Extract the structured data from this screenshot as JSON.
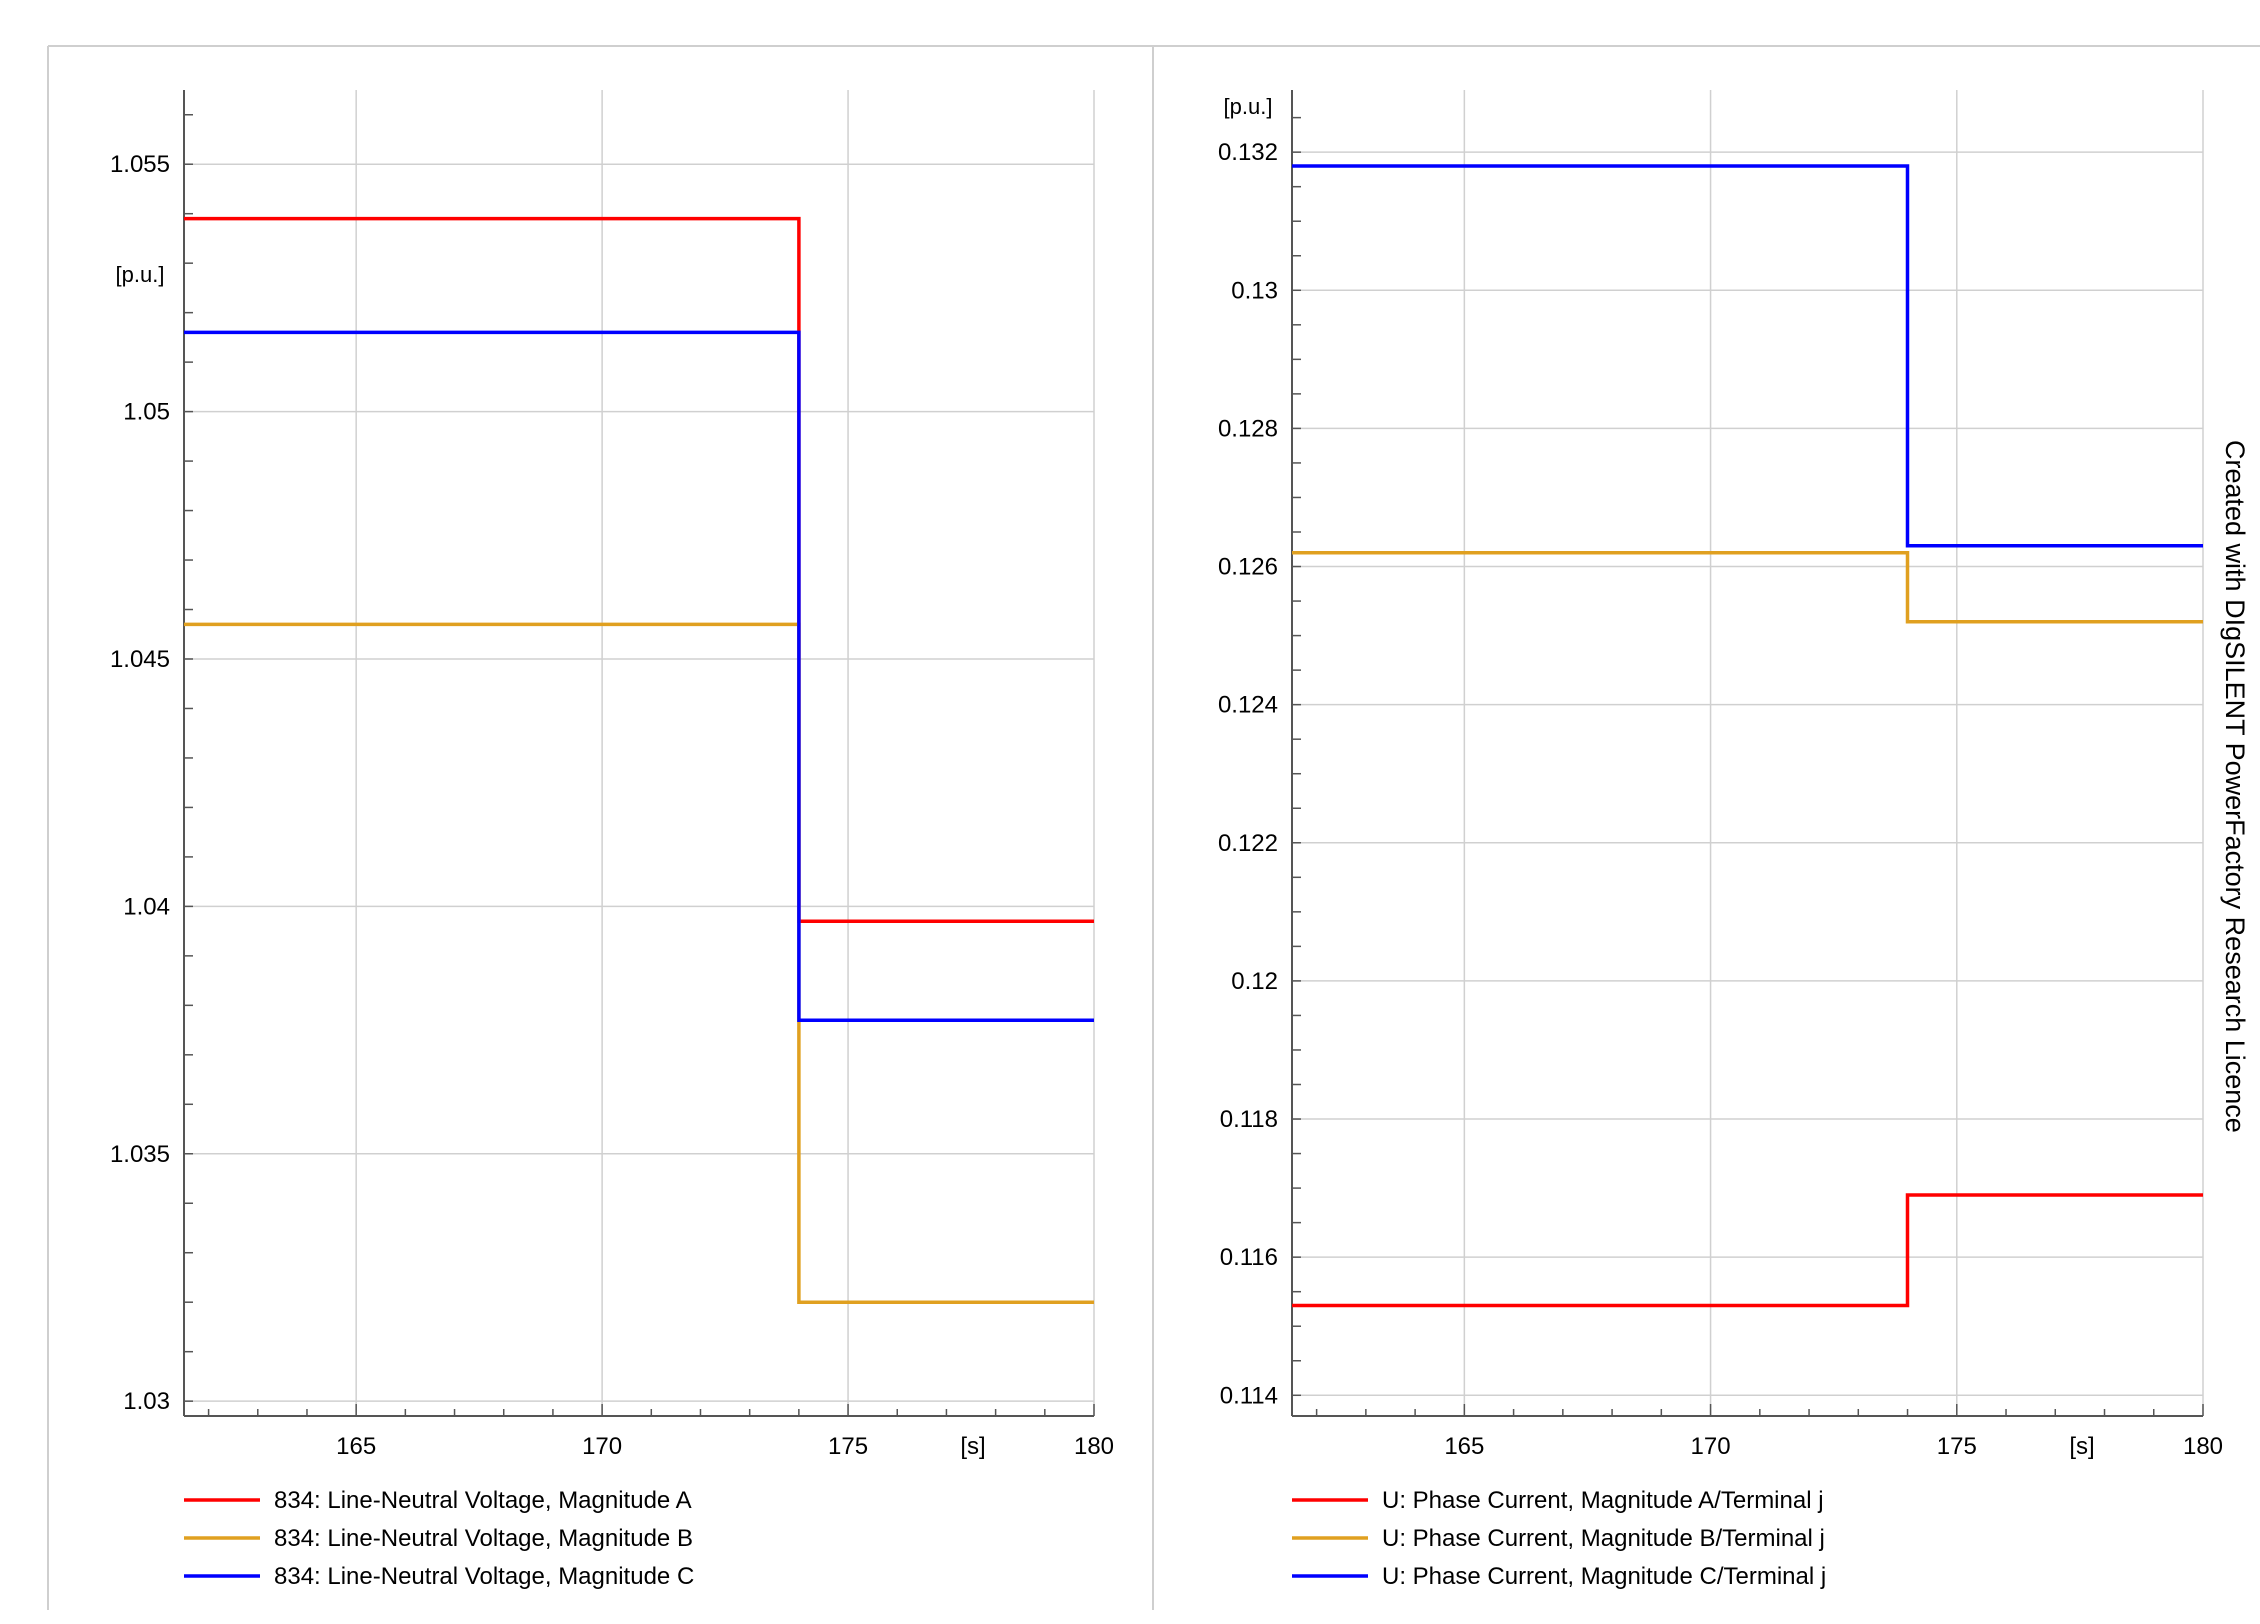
{
  "watermark": "Created with DIgSILENT PowerFactory Research Licence",
  "chart_data": [
    {
      "type": "line",
      "step": true,
      "title": "",
      "xlabel": "[s]",
      "ylabel": "[p.u.]",
      "xlim": [
        161.5,
        180
      ],
      "ylim": [
        1.0297,
        1.0565
      ],
      "x_ticks": [
        165,
        170,
        175,
        180
      ],
      "x_tick_labels": [
        "165",
        "170",
        "175",
        "180"
      ],
      "y_ticks": [
        1.03,
        1.035,
        1.04,
        1.045,
        1.05,
        1.055
      ],
      "y_tick_labels": [
        "1.03",
        "1.035",
        "1.04",
        "1.045",
        "1.05",
        "1.055"
      ],
      "grid": true,
      "legend_position": "bottom",
      "series": [
        {
          "name": "834: Line-Neutral Voltage, Magnitude A",
          "color": "#ff0000",
          "x": [
            161.5,
            174.0,
            174.0,
            180.0
          ],
          "y": [
            1.0539,
            1.0539,
            1.0397,
            1.0397
          ]
        },
        {
          "name": "834: Line-Neutral Voltage, Magnitude B",
          "color": "#e0a020",
          "x": [
            161.5,
            174.0,
            174.0,
            180.0
          ],
          "y": [
            1.0457,
            1.0457,
            1.032,
            1.032
          ]
        },
        {
          "name": "834: Line-Neutral Voltage, Magnitude C",
          "color": "#0000ff",
          "x": [
            161.5,
            174.0,
            174.0,
            180.0
          ],
          "y": [
            1.0516,
            1.0516,
            1.0377,
            1.0377
          ]
        }
      ]
    },
    {
      "type": "line",
      "step": true,
      "title": "",
      "xlabel": "[s]",
      "ylabel": "[p.u.]",
      "xlim": [
        161.5,
        180
      ],
      "ylim": [
        0.1137,
        0.1329
      ],
      "x_ticks": [
        165,
        170,
        175,
        180
      ],
      "x_tick_labels": [
        "165",
        "170",
        "175",
        "180"
      ],
      "y_ticks": [
        0.114,
        0.116,
        0.118,
        0.12,
        0.122,
        0.124,
        0.126,
        0.128,
        0.13,
        0.132
      ],
      "y_tick_labels": [
        "0.114",
        "0.116",
        "0.118",
        "0.12",
        "0.122",
        "0.124",
        "0.126",
        "0.128",
        "0.13",
        "0.132"
      ],
      "grid": true,
      "legend_position": "bottom",
      "series": [
        {
          "name": "U: Phase Current, Magnitude A/Terminal j",
          "color": "#ff0000",
          "x": [
            161.5,
            174.0,
            174.0,
            180.0
          ],
          "y": [
            0.1153,
            0.1153,
            0.1169,
            0.1169
          ]
        },
        {
          "name": "U: Phase Current, Magnitude B/Terminal j",
          "color": "#e0a020",
          "x": [
            161.5,
            174.0,
            174.0,
            180.0
          ],
          "y": [
            0.1262,
            0.1262,
            0.1252,
            0.1252
          ]
        },
        {
          "name": "U: Phase Current, Magnitude C/Terminal j",
          "color": "#0000ff",
          "x": [
            161.5,
            174.0,
            174.0,
            180.0
          ],
          "y": [
            0.1318,
            0.1318,
            0.1263,
            0.1263
          ]
        }
      ]
    }
  ]
}
